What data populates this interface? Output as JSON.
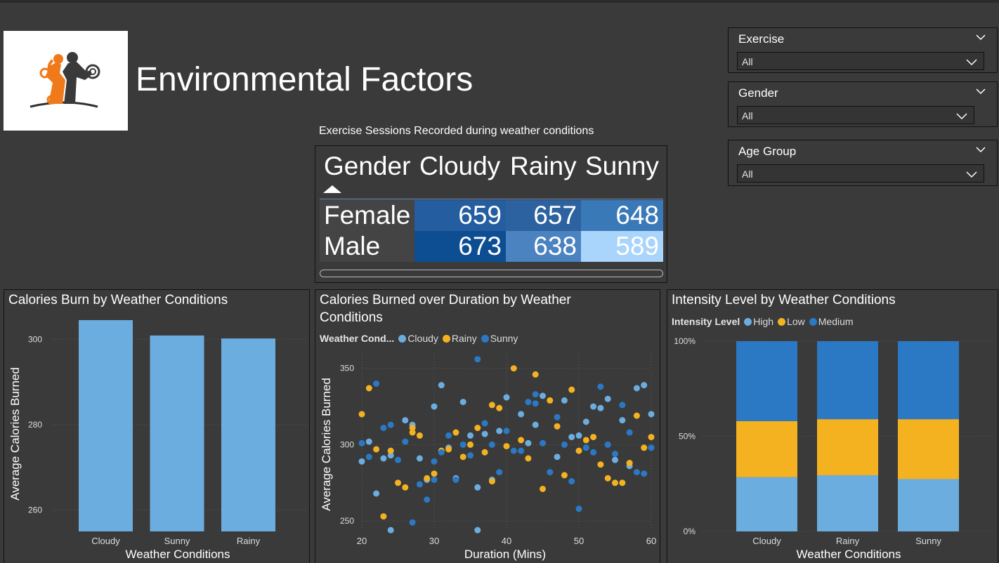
{
  "page": {
    "title": "Environmental Factors"
  },
  "slicers": [
    {
      "label": "Exercise",
      "value": "All"
    },
    {
      "label": "Gender",
      "value": "All"
    },
    {
      "label": "Age Group",
      "value": "All"
    }
  ],
  "matrix": {
    "title": "Exercise Sessions Recorded during weather conditions",
    "headers": [
      "Gender",
      "Cloudy",
      "Rainy",
      "Sunny"
    ],
    "rows": [
      {
        "label": "Female",
        "values": [
          "659",
          "657",
          "648"
        ],
        "colors": [
          "#245ea0",
          "#2c62a0",
          "#3a79b8"
        ]
      },
      {
        "label": "Male",
        "values": [
          "673",
          "638",
          "589"
        ],
        "colors": [
          "#0d4d91",
          "#4a83c0",
          "#a9d4fb"
        ]
      }
    ]
  },
  "colors": {
    "cloudy": "#6cade0",
    "rainy": "#f4b221",
    "sunny": "#2b79c4",
    "bar": "#6cade0",
    "high": "#6cade0",
    "low": "#f4b221",
    "medium": "#2b79c4"
  },
  "chart_data": [
    {
      "type": "bar",
      "title": "Calories Burn by Weather Conditions",
      "xlabel": "Weather Conditions",
      "ylabel": "Average Calories Burned",
      "categories": [
        "Cloudy",
        "Sunny",
        "Rainy"
      ],
      "values": [
        304.5,
        300.9,
        300.2
      ],
      "ylim": [
        255,
        305
      ],
      "yticks": [
        260,
        280,
        300
      ]
    },
    {
      "type": "scatter",
      "title": "Calories Burned over Duration by Weather Conditions",
      "legend_title": "Weather Cond...",
      "xlabel": "Duration (Mins)",
      "ylabel": "Average Calories Burned",
      "xlim": [
        20,
        60
      ],
      "ylim": [
        245,
        360
      ],
      "xticks": [
        20,
        30,
        40,
        50,
        60
      ],
      "yticks": [
        250,
        300,
        350
      ],
      "series": [
        {
          "name": "Cloudy",
          "points": [
            [
              20,
              289
            ],
            [
              21,
              302
            ],
            [
              22,
              268
            ],
            [
              23,
              291
            ],
            [
              24,
              293
            ],
            [
              26,
              316
            ],
            [
              27,
              313
            ],
            [
              28,
              291
            ],
            [
              29,
              277
            ],
            [
              30,
              325
            ],
            [
              31,
              339
            ],
            [
              32,
              298
            ],
            [
              33,
              278
            ],
            [
              34,
              328
            ],
            [
              35,
              306
            ],
            [
              36,
              272
            ],
            [
              37,
              307
            ],
            [
              38,
              277
            ],
            [
              39,
              309
            ],
            [
              40,
              331
            ],
            [
              42,
              320
            ],
            [
              43,
              301
            ],
            [
              44,
              313
            ],
            [
              45,
              332
            ],
            [
              47,
              292
            ],
            [
              48,
              329
            ],
            [
              49,
              305
            ],
            [
              50,
              306
            ],
            [
              51,
              315
            ],
            [
              52,
              325
            ],
            [
              53,
              324
            ],
            [
              54,
              330
            ],
            [
              55,
              290
            ],
            [
              56,
              316
            ],
            [
              57,
              286
            ],
            [
              58,
              337
            ],
            [
              59,
              339
            ],
            [
              60,
              320
            ],
            [
              24,
              244
            ],
            [
              36,
              244
            ]
          ]
        },
        {
          "name": "Rainy",
          "points": [
            [
              20,
              320
            ],
            [
              21,
              337
            ],
            [
              22,
              297
            ],
            [
              23,
              253
            ],
            [
              24,
              296
            ],
            [
              25,
              275
            ],
            [
              26,
              272
            ],
            [
              27,
              311
            ],
            [
              28,
              306
            ],
            [
              29,
              278
            ],
            [
              30,
              281
            ],
            [
              31,
              296
            ],
            [
              32,
              297
            ],
            [
              33,
              308
            ],
            [
              34,
              292
            ],
            [
              35,
              300
            ],
            [
              36,
              311
            ],
            [
              37,
              295
            ],
            [
              38,
              326
            ],
            [
              39,
              324
            ],
            [
              40,
              299
            ],
            [
              41,
              350
            ],
            [
              42,
              303
            ],
            [
              43,
              291
            ],
            [
              44,
              346
            ],
            [
              45,
              271
            ],
            [
              46,
              329
            ],
            [
              47,
              312
            ],
            [
              48,
              280
            ],
            [
              49,
              336
            ],
            [
              50,
              296
            ],
            [
              51,
              303
            ],
            [
              52,
              305
            ],
            [
              53,
              287
            ],
            [
              54,
              278
            ],
            [
              55,
              275
            ],
            [
              56,
              275
            ],
            [
              57,
              288
            ],
            [
              58,
              319
            ],
            [
              59,
              298
            ],
            [
              60,
              305
            ],
            [
              27,
              308
            ],
            [
              38,
              276
            ]
          ]
        },
        {
          "name": "Sunny",
          "points": [
            [
              20,
              301
            ],
            [
              21,
              292
            ],
            [
              22,
              340
            ],
            [
              23,
              311
            ],
            [
              24,
              313
            ],
            [
              25,
              290
            ],
            [
              26,
              302
            ],
            [
              27,
              249
            ],
            [
              28,
              274
            ],
            [
              29,
              264
            ],
            [
              30,
              289
            ],
            [
              31,
              295
            ],
            [
              32,
              306
            ],
            [
              33,
              277
            ],
            [
              34,
              300
            ],
            [
              35,
              293
            ],
            [
              36,
              356
            ],
            [
              37,
              314
            ],
            [
              38,
              300
            ],
            [
              39,
              282
            ],
            [
              40,
              309
            ],
            [
              41,
              296
            ],
            [
              42,
              296
            ],
            [
              43,
              328
            ],
            [
              44,
              333
            ],
            [
              45,
              301
            ],
            [
              46,
              282
            ],
            [
              47,
              318
            ],
            [
              48,
              300
            ],
            [
              49,
              276
            ],
            [
              50,
              258
            ],
            [
              51,
              298
            ],
            [
              52,
              295
            ],
            [
              53,
              338
            ],
            [
              54,
              300
            ],
            [
              55,
              294
            ],
            [
              56,
              326
            ],
            [
              57,
              308
            ],
            [
              58,
              282
            ],
            [
              59,
              281
            ],
            [
              60,
              298
            ],
            [
              44,
              327
            ],
            [
              30,
              277
            ]
          ]
        }
      ]
    },
    {
      "type": "bar",
      "stacked": "percent",
      "title": "Intensity Level by Weather Conditions",
      "legend_title": "Intensity Level",
      "xlabel": "Weather Conditions",
      "categories": [
        "Cloudy",
        "Rainy",
        "Sunny"
      ],
      "yticks": [
        "0%",
        "50%",
        "100%"
      ],
      "series": [
        {
          "name": "High",
          "values": [
            28.5,
            29.5,
            27.5
          ]
        },
        {
          "name": "Low",
          "values": [
            29.5,
            29.5,
            31.5
          ]
        },
        {
          "name": "Medium",
          "values": [
            42,
            41,
            41
          ]
        }
      ]
    }
  ]
}
